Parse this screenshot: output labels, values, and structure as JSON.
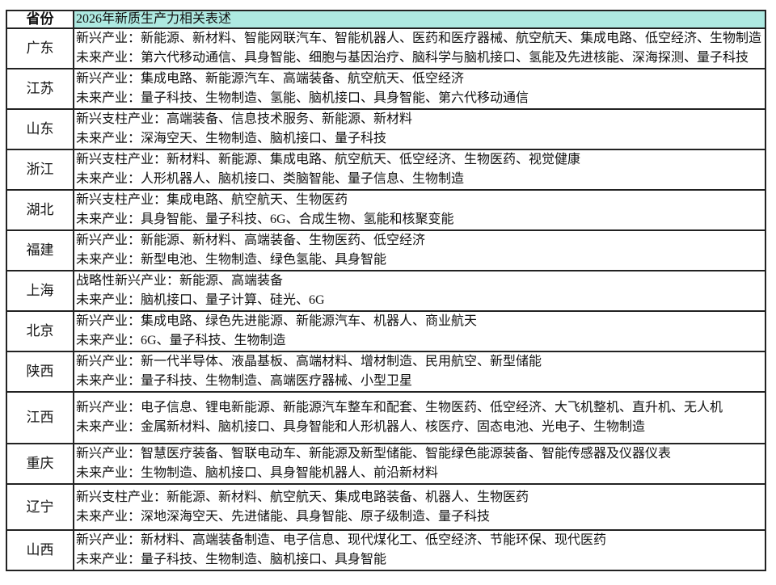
{
  "header": {
    "province": "省份",
    "description": "2026年新质生产力相关表述"
  },
  "colors": {
    "header_bg": "#aee9e1",
    "border": "#222222"
  },
  "rows": [
    {
      "province": "广东",
      "lines": [
        "新兴产业：新能源、新材料、智能网联汽车、智能机器人、医药和医疗器械、航空航天、集成电路、低空经济、生物制造",
        "未来产业：第六代移动通信、具身智能、细胞与基因治疗、脑科学与脑机接口、氢能及先进核能、深海探测、量子科技"
      ]
    },
    {
      "province": "江苏",
      "lines": [
        "新兴产业：集成电路、新能源汽车、高端装备、航空航天、低空经济",
        "未来产业：量子科技、生物制造、氢能、脑机接口、具身智能、第六代移动通信"
      ]
    },
    {
      "province": "山东",
      "lines": [
        "新兴支柱产业：高端装备、信息技术服务、新能源、新材料",
        "未来产业：深海空天、生物制造、脑机接口、量子科技"
      ]
    },
    {
      "province": "浙江",
      "lines": [
        "新兴支柱产业：新材料、新能源、集成电路、航空航天、低空经济、生物医药、视觉健康",
        "未来产业：人形机器人、脑机接口、类脑智能、量子信息、生物制造"
      ]
    },
    {
      "province": "湖北",
      "lines": [
        "新兴支柱产业：集成电路、航空航天、生物医药",
        "未来产业：具身智能、量子科技、6G、合成生物、氢能和核聚变能"
      ]
    },
    {
      "province": "福建",
      "lines": [
        "新兴产业：新能源、新材料、高端装备、生物医药、低空经济",
        "未来产业：新型电池、生物制造、绿色氢能、具身智能"
      ]
    },
    {
      "province": "上海",
      "lines": [
        "战略性新兴产业：新能源、高端装备",
        "未来产业：脑机接口、量子计算、硅光、6G"
      ]
    },
    {
      "province": "北京",
      "lines": [
        "新兴产业：集成电路、绿色先进能源、新能源汽车、机器人、商业航天",
        "未来产业：6G、量子科技、生物制造"
      ]
    },
    {
      "province": "陕西",
      "lines": [
        "新兴产业：新一代半导体、液晶基板、高端材料、增材制造、民用航空、新型储能",
        "未来产业：量子科技、生物制造、高端医疗器械、小型卫星"
      ]
    },
    {
      "province": "江西",
      "lines": [
        "新兴产业：电子信息、锂电新能源、新能源汽车整车和配套、生物医药、低空经济、大飞机整机、直升机、无人机",
        "未来产业：金属新材料、脑机接口、具身智能和人形机器人、核医疗、固态电池、光电子、生物制造"
      ]
    },
    {
      "province": "重庆",
      "lines": [
        "新兴产业：智慧医疗装备、智联电动车、新能源及新型储能、智能绿色能源装备、智能传感器及仪器仪表",
        "未来产业：生物制造、脑机接口、具身智能机器人、前沿新材料"
      ]
    },
    {
      "province": "辽宁",
      "lines": [
        "新兴支柱产业：新能源、新材料、航空航天、集成电路装备、机器人、生物医药",
        "未来产业：深地深海空天、先进储能、具身智能、原子级制造、量子科技"
      ]
    },
    {
      "province": "山西",
      "lines": [
        "新兴产业：新材料、高端装备制造、电子信息、现代煤化工、低空经济、节能环保、现代医药",
        "未来产业：量子科技、生物制造、脑机接口、具身智能"
      ]
    }
  ]
}
